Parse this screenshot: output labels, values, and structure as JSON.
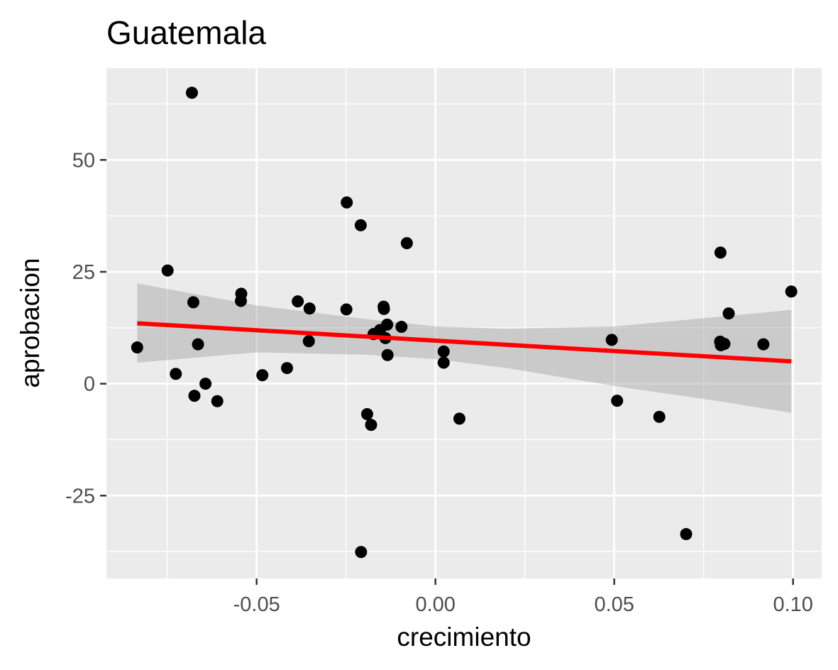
{
  "chart_data": {
    "type": "scatter",
    "title": "Guatemala",
    "xlabel": "crecimiento",
    "ylabel": "aprobacion",
    "xlim": [
      -0.092,
      0.108
    ],
    "ylim": [
      -43.5,
      70.5
    ],
    "x_ticks": [
      -0.05,
      0.0,
      0.05,
      0.1
    ],
    "x_tick_labels": [
      "-0.05",
      "0.00",
      "0.05",
      "0.10"
    ],
    "y_ticks": [
      -25,
      0,
      25,
      50
    ],
    "y_tick_labels": [
      "-25",
      "0",
      "25",
      "50"
    ],
    "grid": true,
    "legend": "none",
    "colors": {
      "panel_background": "#ebebeb",
      "grid": "#ffffff",
      "points": "#000000",
      "trend_line": "#ff0000",
      "confidence_band": "#999999"
    },
    "points": [
      {
        "x": -0.0834,
        "y": 8.1
      },
      {
        "x": -0.0749,
        "y": 25.3
      },
      {
        "x": -0.0726,
        "y": 2.2
      },
      {
        "x": -0.0681,
        "y": 65.0
      },
      {
        "x": -0.0677,
        "y": 18.2
      },
      {
        "x": -0.0674,
        "y": -2.7
      },
      {
        "x": -0.0664,
        "y": 8.8
      },
      {
        "x": -0.0643,
        "y": 0.0
      },
      {
        "x": -0.061,
        "y": -3.9
      },
      {
        "x": -0.0543,
        "y": 20.1
      },
      {
        "x": -0.0544,
        "y": 18.5
      },
      {
        "x": -0.0484,
        "y": 1.9
      },
      {
        "x": -0.0415,
        "y": 3.5
      },
      {
        "x": -0.0385,
        "y": 18.4
      },
      {
        "x": -0.0352,
        "y": 16.8
      },
      {
        "x": -0.0354,
        "y": 9.5
      },
      {
        "x": -0.0248,
        "y": 40.5
      },
      {
        "x": -0.0249,
        "y": 16.6
      },
      {
        "x": -0.0209,
        "y": 35.4
      },
      {
        "x": -0.0208,
        "y": -37.6
      },
      {
        "x": -0.0191,
        "y": -6.8
      },
      {
        "x": -0.018,
        "y": -9.2
      },
      {
        "x": -0.0173,
        "y": 11.1
      },
      {
        "x": -0.0155,
        "y": 12.0
      },
      {
        "x": -0.0145,
        "y": 17.2
      },
      {
        "x": -0.0144,
        "y": 16.7
      },
      {
        "x": -0.0135,
        "y": 13.2
      },
      {
        "x": -0.014,
        "y": 10.2
      },
      {
        "x": -0.0134,
        "y": 6.4
      },
      {
        "x": -0.0095,
        "y": 12.7
      },
      {
        "x": -0.008,
        "y": 31.4
      },
      {
        "x": 0.0023,
        "y": 7.2
      },
      {
        "x": 0.0023,
        "y": 4.7
      },
      {
        "x": 0.0067,
        "y": -7.8
      },
      {
        "x": 0.0493,
        "y": 9.8
      },
      {
        "x": 0.0508,
        "y": -3.8
      },
      {
        "x": 0.0626,
        "y": -7.4
      },
      {
        "x": 0.0701,
        "y": -33.6
      },
      {
        "x": 0.0797,
        "y": 29.3
      },
      {
        "x": 0.0796,
        "y": 9.4
      },
      {
        "x": 0.0798,
        "y": 8.6
      },
      {
        "x": 0.0808,
        "y": 8.9
      },
      {
        "x": 0.082,
        "y": 15.7
      },
      {
        "x": 0.0917,
        "y": 8.8
      },
      {
        "x": 0.0995,
        "y": 20.6
      }
    ],
    "trend_line": {
      "x": [
        -0.0834,
        0.0995
      ],
      "y": [
        13.5,
        5.0
      ]
    },
    "confidence_band": {
      "x": [
        -0.0834,
        -0.05,
        -0.02,
        0.0,
        0.02,
        0.05,
        0.08,
        0.0995
      ],
      "lower": [
        4.7,
        7.0,
        6.5,
        5.5,
        3.5,
        -0.5,
        -4.0,
        -6.5
      ],
      "upper": [
        22.4,
        17.5,
        14.5,
        12.8,
        12.3,
        12.8,
        15.0,
        16.5
      ]
    }
  }
}
